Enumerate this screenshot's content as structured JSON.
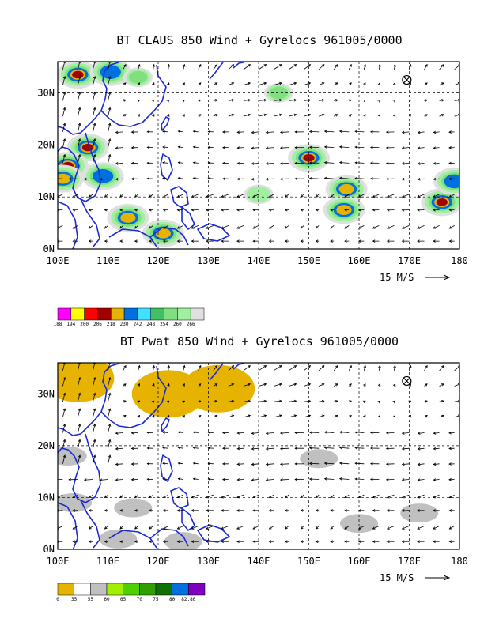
{
  "chart_data": [
    {
      "type": "heatmap",
      "title": "BT CLAUS 850 Wind + Gyrelocs 961005/0000",
      "x_ticks": [
        "100E",
        "110E",
        "120E",
        "130E",
        "140E",
        "150E",
        "160E",
        "170E",
        "180"
      ],
      "y_ticks": [
        "0N",
        "10N",
        "20N",
        "30N"
      ],
      "xlim": [
        100,
        180
      ],
      "ylim": [
        0,
        36
      ],
      "grid": true,
      "vector_scale_label": "15 M/S",
      "gyre_marker": {
        "lon": 169.5,
        "lat": 32.5
      },
      "colorbar": {
        "labels": [
          "188",
          "194",
          "200",
          "206",
          "218",
          "230",
          "242",
          "248",
          "254",
          "260",
          "266"
        ],
        "colors": [
          "#ff00ff",
          "#ffff00",
          "#ff0000",
          "#a00000",
          "#e6b400",
          "#0070e0",
          "#40e0ff",
          "#40c060",
          "#80e080",
          "#a0f0a0",
          "#e0e0e0"
        ]
      },
      "features": [
        {
          "lon": 104,
          "lat": 33.5,
          "level": 3
        },
        {
          "lon": 110.5,
          "lat": 34,
          "level": 5
        },
        {
          "lon": 116,
          "lat": 33,
          "level": 8
        },
        {
          "lon": 144,
          "lat": 30,
          "level": 8
        },
        {
          "lon": 106,
          "lat": 19.5,
          "level": 3
        },
        {
          "lon": 102,
          "lat": 16,
          "level": 3
        },
        {
          "lon": 101,
          "lat": 13.5,
          "level": 4
        },
        {
          "lon": 109,
          "lat": 14,
          "level": 5
        },
        {
          "lon": 114,
          "lat": 6,
          "level": 4
        },
        {
          "lon": 121,
          "lat": 3,
          "level": 4
        },
        {
          "lon": 150,
          "lat": 17.5,
          "level": 3
        },
        {
          "lon": 157.5,
          "lat": 11.5,
          "level": 4
        },
        {
          "lon": 157,
          "lat": 7.5,
          "level": 4
        },
        {
          "lon": 176.5,
          "lat": 9,
          "level": 3
        },
        {
          "lon": 179,
          "lat": 13,
          "level": 5
        },
        {
          "lon": 140,
          "lat": 10.5,
          "level": 9
        }
      ]
    },
    {
      "type": "heatmap",
      "title": "BT Pwat 850 Wind + Gyrelocs 961005/0000",
      "x_ticks": [
        "100E",
        "110E",
        "120E",
        "130E",
        "140E",
        "150E",
        "160E",
        "170E",
        "180"
      ],
      "y_ticks": [
        "0N",
        "10N",
        "20N",
        "30N"
      ],
      "xlim": [
        100,
        180
      ],
      "ylim": [
        0,
        36
      ],
      "grid": true,
      "vector_scale_label": "15 M/S",
      "gyre_marker": {
        "lon": 169.5,
        "lat": 32.5
      },
      "colorbar": {
        "labels": [
          "0",
          "35",
          "55",
          "60",
          "65",
          "70",
          "75",
          "80",
          "82.86"
        ],
        "colors": [
          "#e6b400",
          "#ffffff",
          "#c0c0c0",
          "#a0f000",
          "#50d000",
          "#30a000",
          "#107000",
          "#0070e0",
          "#8000c0"
        ]
      },
      "features": [
        {
          "lon": 104,
          "lat": 33,
          "level": 0
        },
        {
          "lon": 122,
          "lat": 30,
          "level": 0
        },
        {
          "lon": 132,
          "lat": 31,
          "level": 0
        },
        {
          "lon": 103,
          "lat": 9,
          "level": 2
        },
        {
          "lon": 115,
          "lat": 8,
          "level": 2
        },
        {
          "lon": 125,
          "lat": 1.5,
          "level": 2
        },
        {
          "lon": 112,
          "lat": 2,
          "level": 2
        },
        {
          "lon": 102,
          "lat": 18,
          "level": 2
        },
        {
          "lon": 152,
          "lat": 17.5,
          "level": 2
        },
        {
          "lon": 160,
          "lat": 5,
          "level": 2
        },
        {
          "lon": 172,
          "lat": 7,
          "level": 2
        }
      ]
    }
  ]
}
